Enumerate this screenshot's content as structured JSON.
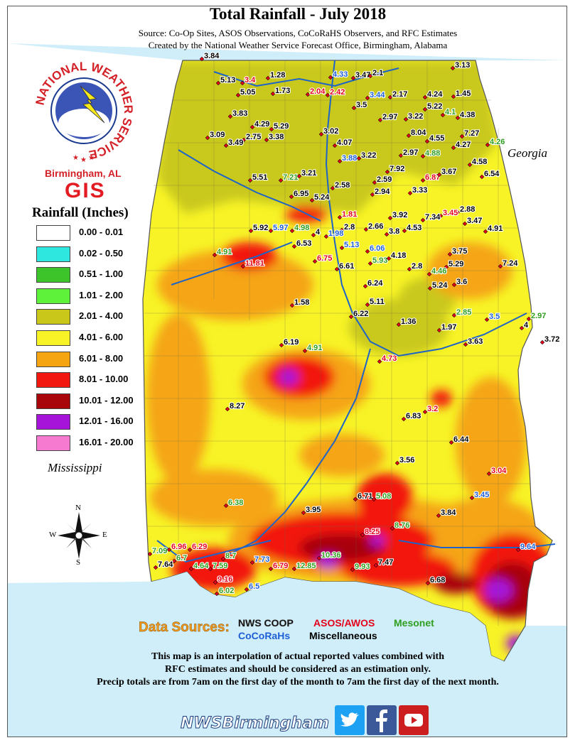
{
  "header": {
    "title": "Total Rainfall - July 2018",
    "source": "Source: Co-Op Sites, ASOS Observations, CoCoRaHS Observers, and RFC Estimates",
    "created": "Created by the National Weather Service Forecast Office, Birmingham, Alabama"
  },
  "logo": {
    "ring_text": "NATIONAL WEATHER SERVICE",
    "location": "Birmingham, AL",
    "gis": "GIS"
  },
  "legend": {
    "title": "Rainfall (Inches)",
    "items": [
      {
        "label": "0.00 - 0.01",
        "color": "#ffffff"
      },
      {
        "label": "0.02 - 0.50",
        "color": "#2ee8e0"
      },
      {
        "label": "0.51 - 1.00",
        "color": "#3cc42a"
      },
      {
        "label": "1.01 - 2.00",
        "color": "#5ef23a"
      },
      {
        "label": "2.01 - 4.00",
        "color": "#c9c81a"
      },
      {
        "label": "4.01 - 6.00",
        "color": "#f7f327"
      },
      {
        "label": "6.01 - 8.00",
        "color": "#f5a512"
      },
      {
        "label": "8.01 - 10.00",
        "color": "#f2170f"
      },
      {
        "label": "10.01 - 12.00",
        "color": "#a8060b"
      },
      {
        "label": "12.01 - 16.00",
        "color": "#a614d9"
      },
      {
        "label": "16.01 - 20.00",
        "color": "#f57ad0"
      }
    ]
  },
  "states": {
    "georgia": "Georgia",
    "mississippi": "Mississippi"
  },
  "compass": {
    "n": "N",
    "s": "S",
    "e": "E",
    "w": "W"
  },
  "data_sources": {
    "label": "Data Sources:",
    "nws_coop": "NWS COOP",
    "asos": "ASOS/AWOS",
    "mesonet": "Mesonet",
    "cocorahs": "CoCoRaHs",
    "misc": "Miscellaneous"
  },
  "notes": {
    "line1": "This map is an interpolation of actual reported values combined with",
    "line2": "RFC estimates and should be considered as an estimation only.",
    "line3": "Precip totals are from 7am on the first day of the month to 7am the first day of the next month."
  },
  "footer": {
    "handle": "NWSBirmingham"
  },
  "colors": {
    "coop": "#000000",
    "asos": "#e4001b",
    "mesonet": "#2f9e1e",
    "cocorahs": "#1e5fd6",
    "misc": "#000000"
  },
  "observations": [
    {
      "v": "3.84",
      "t": "misc"
    },
    {
      "v": "5.13",
      "t": "coop"
    },
    {
      "v": "3.4",
      "t": "asos"
    },
    {
      "v": "5.05",
      "t": "coop"
    },
    {
      "v": "1.28",
      "t": "coop"
    },
    {
      "v": "1.73",
      "t": "coop"
    },
    {
      "v": "4.33",
      "t": "cocorahs"
    },
    {
      "v": "3.47",
      "t": "coop"
    },
    {
      "v": "2.1",
      "t": "coop"
    },
    {
      "v": "3.13",
      "t": "coop"
    },
    {
      "v": "2.04",
      "t": "asos"
    },
    {
      "v": "2.42",
      "t": "asos"
    },
    {
      "v": "3.44",
      "t": "cocorahs"
    },
    {
      "v": "2.17",
      "t": "coop"
    },
    {
      "v": "4.24",
      "t": "coop"
    },
    {
      "v": "1.45",
      "t": "coop"
    },
    {
      "v": "3.5",
      "t": "coop"
    },
    {
      "v": "5.22",
      "t": "coop"
    },
    {
      "v": "3.83",
      "t": "coop"
    },
    {
      "v": "2.97",
      "t": "coop"
    },
    {
      "v": "3.22",
      "t": "coop"
    },
    {
      "v": "4.1",
      "t": "mesonet"
    },
    {
      "v": "4.38",
      "t": "coop"
    },
    {
      "v": "4.29",
      "t": "coop"
    },
    {
      "v": "5.29",
      "t": "coop"
    },
    {
      "v": "3.09",
      "t": "coop"
    },
    {
      "v": "2.75",
      "t": "coop"
    },
    {
      "v": "3.38",
      "t": "coop"
    },
    {
      "v": "3.02",
      "t": "coop"
    },
    {
      "v": "8.04",
      "t": "coop"
    },
    {
      "v": "7.27",
      "t": "coop"
    },
    {
      "v": "3.49",
      "t": "coop"
    },
    {
      "v": "4.07",
      "t": "coop"
    },
    {
      "v": "4.55",
      "t": "coop"
    },
    {
      "v": "4.27",
      "t": "coop"
    },
    {
      "v": "4.26",
      "t": "mesonet"
    },
    {
      "v": "3.88",
      "t": "cocorahs"
    },
    {
      "v": "3.22",
      "t": "coop"
    },
    {
      "v": "2.97",
      "t": "coop"
    },
    {
      "v": "4.88",
      "t": "mesonet"
    },
    {
      "v": "4.58",
      "t": "coop"
    },
    {
      "v": "7.92",
      "t": "coop"
    },
    {
      "v": "6.87",
      "t": "asos"
    },
    {
      "v": "3.67",
      "t": "coop"
    },
    {
      "v": "6.54",
      "t": "coop"
    },
    {
      "v": "5.51",
      "t": "coop"
    },
    {
      "v": "7.21",
      "t": "mesonet"
    },
    {
      "v": "3.21",
      "t": "coop"
    },
    {
      "v": "2.59",
      "t": "coop"
    },
    {
      "v": "2.58",
      "t": "coop"
    },
    {
      "v": "2.94",
      "t": "coop"
    },
    {
      "v": "3.33",
      "t": "coop"
    },
    {
      "v": "6.95",
      "t": "coop"
    },
    {
      "v": "5.24",
      "t": "coop"
    },
    {
      "v": "2.88",
      "t": "coop"
    },
    {
      "v": "3.45",
      "t": "asos"
    },
    {
      "v": "3.92",
      "t": "coop"
    },
    {
      "v": "7.34",
      "t": "coop"
    },
    {
      "v": "3.47",
      "t": "coop"
    },
    {
      "v": "1.81",
      "t": "asos"
    },
    {
      "v": "5.92",
      "t": "coop"
    },
    {
      "v": "5.97",
      "t": "cocorahs"
    },
    {
      "v": "4.98",
      "t": "mesonet"
    },
    {
      "v": "2.8",
      "t": "coop"
    },
    {
      "v": "2.66",
      "t": "coop"
    },
    {
      "v": "4.91",
      "t": "coop"
    },
    {
      "v": "4",
      "t": "coop"
    },
    {
      "v": "1.98",
      "t": "cocorahs"
    },
    {
      "v": "3.8",
      "t": "coop"
    },
    {
      "v": "4.53",
      "t": "coop"
    },
    {
      "v": "6.53",
      "t": "coop"
    },
    {
      "v": "5.13",
      "t": "cocorahs"
    },
    {
      "v": "6.06",
      "t": "cocorahs"
    },
    {
      "v": "3.75",
      "t": "coop"
    },
    {
      "v": "4.91",
      "t": "mesonet"
    },
    {
      "v": "11.81",
      "t": "asos"
    },
    {
      "v": "6.75",
      "t": "asos"
    },
    {
      "v": "6.61",
      "t": "coop"
    },
    {
      "v": "5.93",
      "t": "mesonet"
    },
    {
      "v": "4.18",
      "t": "coop"
    },
    {
      "v": "5.29",
      "t": "coop"
    },
    {
      "v": "7.24",
      "t": "coop"
    },
    {
      "v": "2.8",
      "t": "coop"
    },
    {
      "v": "4.46",
      "t": "mesonet"
    },
    {
      "v": "3.6",
      "t": "coop"
    },
    {
      "v": "5.24",
      "t": "coop"
    },
    {
      "v": "6.24",
      "t": "coop"
    },
    {
      "v": "1.58",
      "t": "coop"
    },
    {
      "v": "5.11",
      "t": "coop"
    },
    {
      "v": "6.22",
      "t": "coop"
    },
    {
      "v": "2.85",
      "t": "mesonet"
    },
    {
      "v": "1.36",
      "t": "coop"
    },
    {
      "v": "1.97",
      "t": "coop"
    },
    {
      "v": "3.5",
      "t": "cocorahs"
    },
    {
      "v": "2.97",
      "t": "mesonet"
    },
    {
      "v": "4",
      "t": "coop"
    },
    {
      "v": "3.72",
      "t": "coop"
    },
    {
      "v": "6.19",
      "t": "coop"
    },
    {
      "v": "4.91",
      "t": "mesonet"
    },
    {
      "v": "3.63",
      "t": "coop"
    },
    {
      "v": "4.73",
      "t": "asos"
    },
    {
      "v": "8.27",
      "t": "coop"
    },
    {
      "v": "6.83",
      "t": "coop"
    },
    {
      "v": "3.2",
      "t": "asos"
    },
    {
      "v": "6.44",
      "t": "coop"
    },
    {
      "v": "3.56",
      "t": "coop"
    },
    {
      "v": "3.04",
      "t": "asos"
    },
    {
      "v": "6.71",
      "t": "coop"
    },
    {
      "v": "5.08",
      "t": "mesonet"
    },
    {
      "v": "3.45",
      "t": "cocorahs"
    },
    {
      "v": "6.38",
      "t": "mesonet"
    },
    {
      "v": "3.95",
      "t": "coop"
    },
    {
      "v": "3.84",
      "t": "coop"
    },
    {
      "v": "8.76",
      "t": "mesonet"
    },
    {
      "v": "8.25",
      "t": "asos"
    },
    {
      "v": "9.64",
      "t": "cocorahs"
    },
    {
      "v": "7.09",
      "t": "mesonet"
    },
    {
      "v": "6.96",
      "t": "asos"
    },
    {
      "v": "6.29",
      "t": "asos"
    },
    {
      "v": "6.7",
      "t": "mesonet"
    },
    {
      "v": "8.7",
      "t": "mesonet"
    },
    {
      "v": "7.64",
      "t": "coop"
    },
    {
      "v": "4.64",
      "t": "mesonet"
    },
    {
      "v": "7.59",
      "t": "mesonet"
    },
    {
      "v": "7.73",
      "t": "cocorahs"
    },
    {
      "v": "6.79",
      "t": "asos"
    },
    {
      "v": "12.85",
      "t": "mesonet"
    },
    {
      "v": "10.36",
      "t": "mesonet"
    },
    {
      "v": "9.93",
      "t": "mesonet"
    },
    {
      "v": "7.47",
      "t": "coop"
    },
    {
      "v": "9.16",
      "t": "asos"
    },
    {
      "v": "6.68",
      "t": "coop"
    },
    {
      "v": "6.02",
      "t": "mesonet"
    },
    {
      "v": "6.5",
      "t": "cocorahs"
    }
  ]
}
